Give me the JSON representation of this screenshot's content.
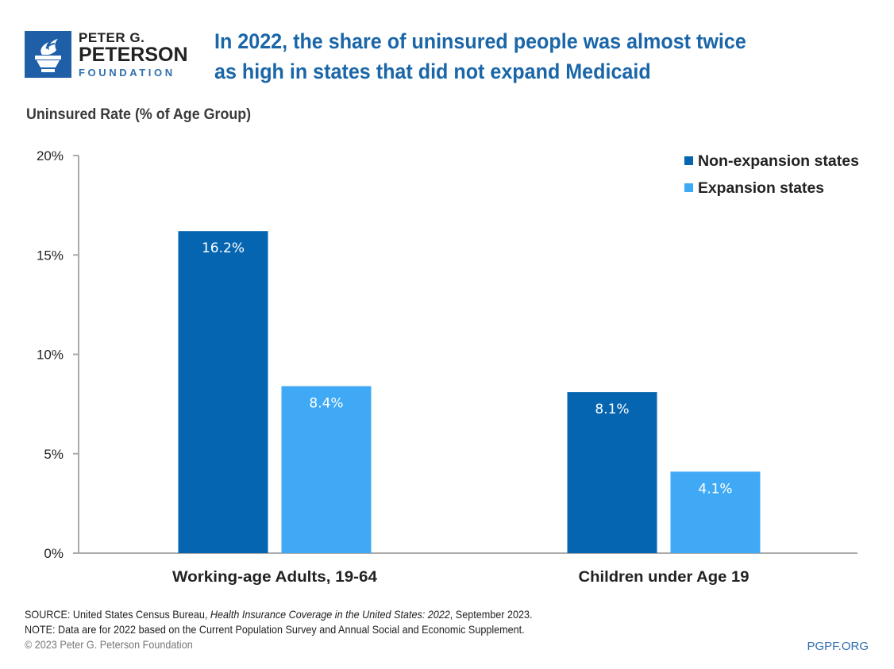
{
  "header": {
    "logo": {
      "icon": "torch-icon",
      "line1": "PETER G.",
      "line2": "PETERSON",
      "line3": "FOUNDATION"
    },
    "title_line1": "In 2022, the share of uninsured people was almost twice",
    "title_line2": "as high in states that did not expand Medicaid"
  },
  "colors": {
    "non_expansion": "#0565b0",
    "expansion": "#3fa9f5",
    "title": "#1a66a8",
    "axis": "#aaaaaa",
    "brand": "#1f5fa8"
  },
  "chart_data": {
    "type": "bar",
    "title": "In 2022, the share of uninsured people was almost twice as high in states that did not expand Medicaid",
    "ylabel": "Uninsured Rate (% of Age Group)",
    "xlabel": "",
    "categories": [
      "Working-age Adults, 19-64",
      "Children under Age 19"
    ],
    "series": [
      {
        "name": "Non-expansion states",
        "values": [
          16.2,
          8.1
        ],
        "labels": [
          "16.2%",
          "8.1%"
        ]
      },
      {
        "name": "Expansion states",
        "values": [
          8.4,
          4.1
        ],
        "labels": [
          "8.4%",
          "4.1%"
        ]
      }
    ],
    "ylim": [
      0,
      20
    ],
    "yticks": [
      0,
      5,
      10,
      15,
      20
    ],
    "ytick_labels": [
      "0%",
      "5%",
      "10%",
      "15%",
      "20%"
    ],
    "grid": false,
    "legend_position": "top-right"
  },
  "footer": {
    "source_prefix": "SOURCE: United States Census Bureau, ",
    "source_italic": "Health Insurance Coverage in the United States: 2022",
    "source_suffix": ", September 2023.",
    "note": "NOTE: Data are for 2022 based on the Current Population Survey and Annual Social and Economic Supplement.",
    "copyright": "© 2023 Peter G. Peterson Foundation",
    "site": "PGPF.ORG"
  }
}
